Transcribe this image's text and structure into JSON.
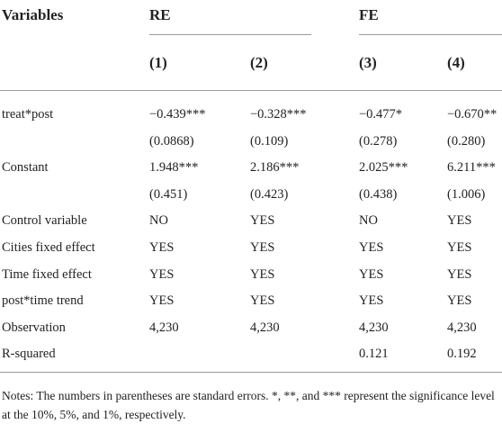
{
  "table": {
    "header": {
      "variables": "Variables",
      "groups": [
        "RE",
        "FE"
      ],
      "columns": [
        "(1)",
        "(2)",
        "(3)",
        "(4)"
      ]
    },
    "rows": [
      {
        "label": "treat*post",
        "cells": [
          "−0.439***",
          "−0.328***",
          "−0.477*",
          "−0.670**"
        ]
      },
      {
        "label": null,
        "cells": [
          "(0.0868)",
          "(0.109)",
          "(0.278)",
          "(0.280)"
        ]
      },
      {
        "label": "Constant",
        "cells": [
          "1.948***",
          "2.186***",
          "2.025***",
          "6.211***"
        ]
      },
      {
        "label": null,
        "cells": [
          "(0.451)",
          "(0.423)",
          "(0.438)",
          "(1.006)"
        ]
      },
      {
        "label": "Control variable",
        "cells": [
          "NO",
          "YES",
          "NO",
          "YES"
        ]
      },
      {
        "label": "Cities fixed effect",
        "cells": [
          "YES",
          "YES",
          "YES",
          "YES"
        ]
      },
      {
        "label": "Time fixed effect",
        "cells": [
          "YES",
          "YES",
          "YES",
          "YES"
        ]
      },
      {
        "label": "post*time trend",
        "cells": [
          "YES",
          "YES",
          "YES",
          "YES"
        ]
      },
      {
        "label": "Observation",
        "cells": [
          "4,230",
          "4,230",
          "4,230",
          "4,230"
        ]
      },
      {
        "label": "R-squared",
        "cells": [
          null,
          null,
          "0.121",
          "0.192"
        ]
      }
    ],
    "notes": "Notes: The numbers in parentheses are standard errors. *, **, and *** represent the significance level at the 10%, 5%, and 1%, respectively."
  }
}
